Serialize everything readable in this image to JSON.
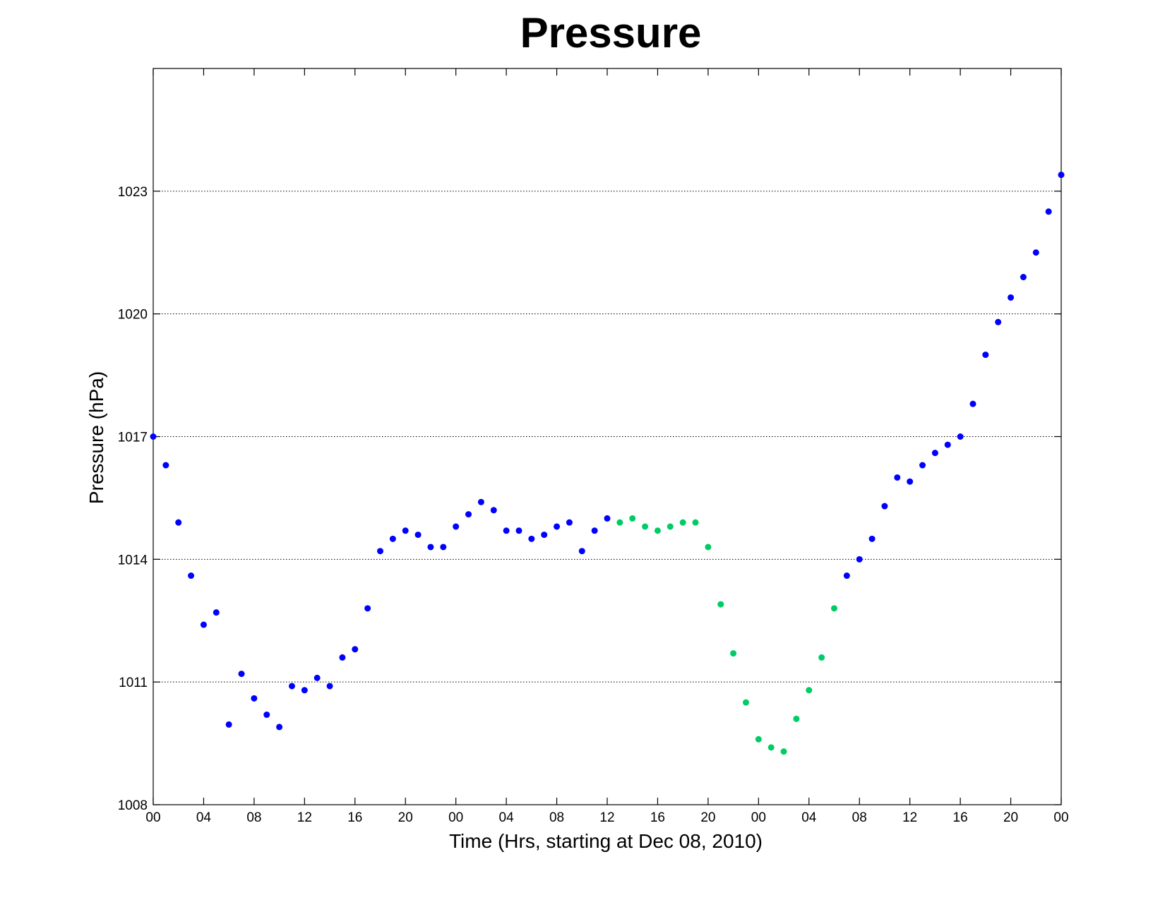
{
  "chart_data": {
    "type": "scatter",
    "title": "Pressure",
    "xlabel": "Time (Hrs, starting at Dec 08, 2010)",
    "ylabel": "Pressure (hPa)",
    "x_unit": "hours",
    "xlim": [
      0,
      72
    ],
    "ylim": [
      1008,
      1026
    ],
    "x_ticks": [
      0,
      4,
      8,
      12,
      16,
      20,
      24,
      28,
      32,
      36,
      40,
      44,
      48,
      52,
      56,
      60,
      64,
      68,
      72
    ],
    "x_tick_labels": [
      "00",
      "04",
      "08",
      "12",
      "16",
      "20",
      "00",
      "04",
      "08",
      "12",
      "16",
      "20",
      "00",
      "04",
      "08",
      "12",
      "16",
      "20",
      "00"
    ],
    "y_ticks": [
      1008,
      1011,
      1014,
      1017,
      1020,
      1023
    ],
    "y_tick_labels": [
      "1008",
      "1011",
      "1014",
      "1017",
      "1020",
      "1023"
    ],
    "grid": "horizontal dotted",
    "series": [
      {
        "color": "#0000ff",
        "points": [
          [
            0,
            1017.0
          ],
          [
            1,
            1016.3
          ],
          [
            2,
            1014.9
          ],
          [
            3,
            1013.6
          ],
          [
            4,
            1012.4
          ],
          [
            5,
            1012.7
          ],
          [
            6,
            1009.96
          ],
          [
            7,
            1011.2
          ],
          [
            8,
            1010.6
          ],
          [
            9,
            1010.2
          ],
          [
            10,
            1009.9
          ],
          [
            11,
            1010.9
          ],
          [
            12,
            1010.8
          ],
          [
            13,
            1011.1
          ],
          [
            14,
            1010.9
          ],
          [
            15,
            1011.6
          ],
          [
            16,
            1011.8
          ],
          [
            17,
            1012.8
          ],
          [
            18,
            1014.2
          ],
          [
            19,
            1014.5
          ],
          [
            20,
            1014.7
          ],
          [
            21,
            1014.6
          ],
          [
            22,
            1014.3
          ],
          [
            23,
            1014.3
          ],
          [
            24,
            1014.8
          ],
          [
            25,
            1015.1
          ],
          [
            26,
            1015.4
          ],
          [
            27,
            1015.2
          ],
          [
            28,
            1014.7
          ],
          [
            29,
            1014.7
          ],
          [
            30,
            1014.5
          ],
          [
            31,
            1014.6
          ],
          [
            32,
            1014.8
          ],
          [
            33,
            1014.9
          ],
          [
            34,
            1014.2
          ],
          [
            35,
            1014.7
          ],
          [
            36,
            1015.0
          ],
          [
            55,
            1013.6
          ],
          [
            56,
            1014.0
          ],
          [
            57,
            1014.5
          ],
          [
            58,
            1015.3
          ],
          [
            59,
            1016.0
          ],
          [
            60,
            1015.9
          ],
          [
            61,
            1016.3
          ],
          [
            62,
            1016.6
          ],
          [
            63,
            1016.8
          ],
          [
            64,
            1017.0
          ],
          [
            65,
            1017.8
          ],
          [
            66,
            1019.0
          ],
          [
            67,
            1019.8
          ],
          [
            68,
            1020.4
          ],
          [
            69,
            1020.9
          ],
          [
            70,
            1021.5
          ],
          [
            71,
            1022.5
          ],
          [
            72,
            1023.4
          ]
        ]
      },
      {
        "color": "#00cc66",
        "points": [
          [
            37,
            1014.9
          ],
          [
            38,
            1015.0
          ],
          [
            39,
            1014.8
          ],
          [
            40,
            1014.7
          ],
          [
            41,
            1014.8
          ],
          [
            42,
            1014.9
          ],
          [
            43,
            1014.9
          ],
          [
            44,
            1014.3
          ],
          [
            45,
            1012.9
          ],
          [
            46,
            1011.7
          ],
          [
            47,
            1010.5
          ],
          [
            48,
            1009.6
          ],
          [
            49,
            1009.4
          ],
          [
            50,
            1009.3
          ],
          [
            51,
            1010.1
          ],
          [
            52,
            1010.8
          ],
          [
            53,
            1011.6
          ],
          [
            54,
            1012.8
          ]
        ]
      }
    ]
  }
}
